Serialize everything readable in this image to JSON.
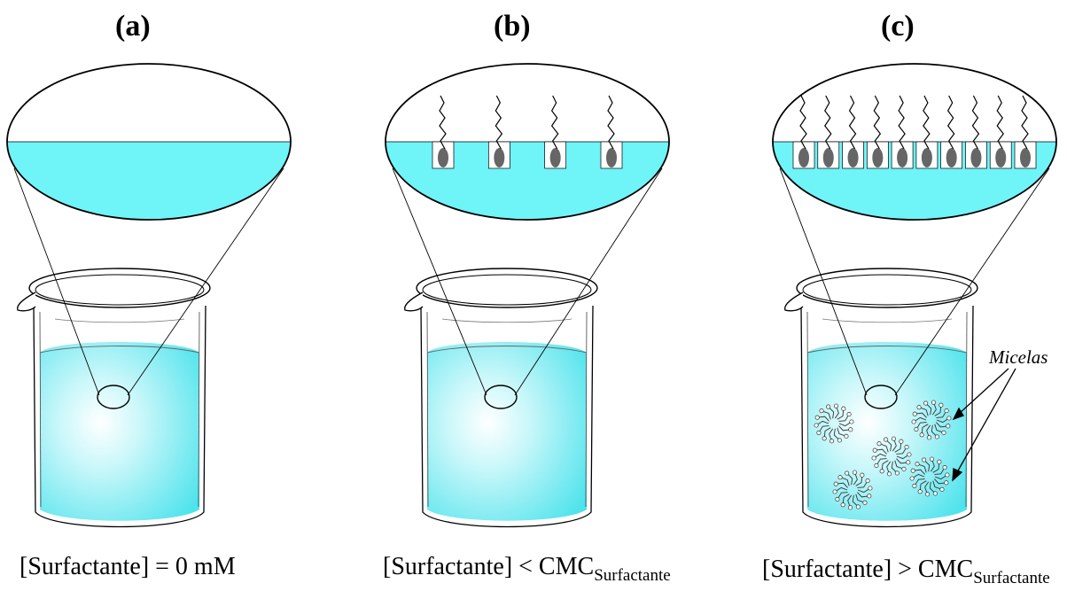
{
  "panels": [
    {
      "label": "(a)",
      "caption_main": "[Surfactante] = 0 mM",
      "caption_sub": "",
      "surface_molecules": 0,
      "micelles": 0
    },
    {
      "label": "(b)",
      "caption_main": "[Surfactante] < CMC",
      "caption_sub": "Surfactante",
      "surface_molecules": 4,
      "micelles": 0
    },
    {
      "label": "(c)",
      "caption_main": "[Surfactante] > CMC",
      "caption_sub": "Surfactante",
      "surface_molecules": 10,
      "micelles": 5,
      "annotation": "Micelas"
    }
  ],
  "colors": {
    "water": "#6ff4f8",
    "water_light": "#ffffff",
    "head": "#666666",
    "outline": "#000000"
  }
}
